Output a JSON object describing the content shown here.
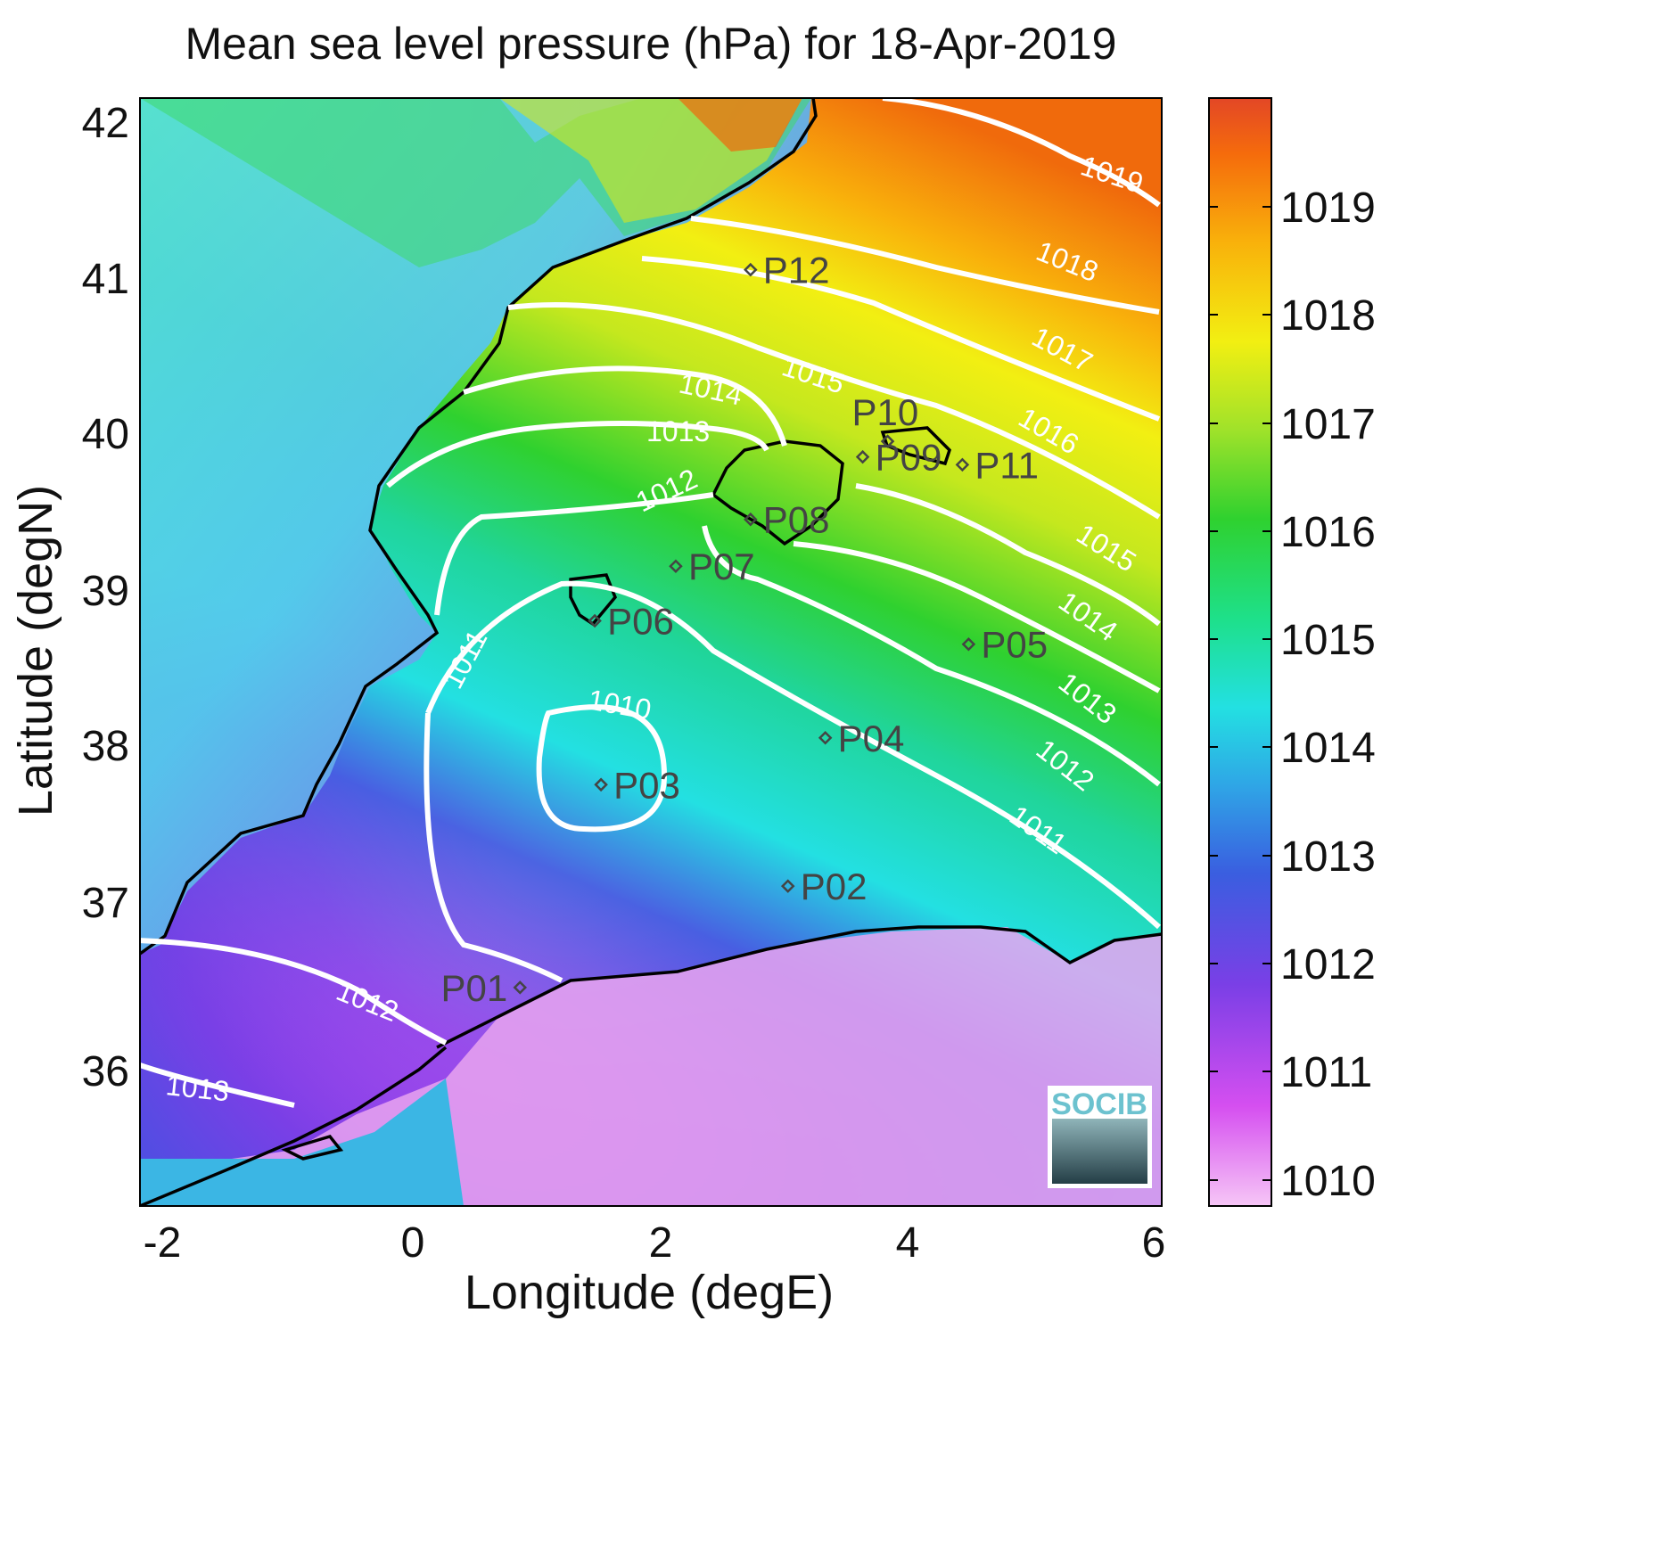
{
  "title": "Mean sea level pressure (hPa) for 18-Apr-2019",
  "xlabel": "Longitude (degE)",
  "ylabel": "Latitude (degN)",
  "x_ticks": [
    "-2",
    "0",
    "2",
    "4",
    "6"
  ],
  "y_ticks": [
    "42",
    "41",
    "40",
    "39",
    "38",
    "37",
    "36"
  ],
  "colorbar": {
    "ticks": [
      "1019",
      "1018",
      "1017",
      "1016",
      "1015",
      "1014",
      "1013",
      "1012",
      "1011",
      "1010"
    ],
    "colors": [
      "#f4b8f4",
      "#d54ff0",
      "#7a3fe6",
      "#3b7bd9",
      "#23d3e6",
      "#20d59a",
      "#2fd12f",
      "#9fe22a",
      "#f2ef12",
      "#f9b10b",
      "#f56b0c",
      "#e34726"
    ]
  },
  "chart_data": {
    "type": "heatmap",
    "title": "Mean sea level pressure (hPa) for 18-Apr-2019",
    "xlabel": "Longitude (degE)",
    "ylabel": "Latitude (degN)",
    "xlim": [
      -2.2,
      6
    ],
    "ylim": [
      35.1,
      42.2
    ],
    "color_range": [
      1009.8,
      1019.9
    ],
    "pressure_minimum": {
      "lon": 1.4,
      "lat": 37.8,
      "value": 1010
    },
    "contour_levels": [
      1010,
      1011,
      1012,
      1013,
      1014,
      1015,
      1016,
      1017,
      1018,
      1019
    ],
    "stations": [
      {
        "name": "P01",
        "lon": 0.85,
        "lat": 36.5
      },
      {
        "name": "P02",
        "lon": 3.0,
        "lat": 37.15
      },
      {
        "name": "P03",
        "lon": 1.5,
        "lat": 37.8
      },
      {
        "name": "P04",
        "lon": 3.3,
        "lat": 38.1
      },
      {
        "name": "P05",
        "lon": 4.45,
        "lat": 38.7
      },
      {
        "name": "P06",
        "lon": 1.45,
        "lat": 38.85
      },
      {
        "name": "P07",
        "lon": 2.1,
        "lat": 39.2
      },
      {
        "name": "P08",
        "lon": 2.7,
        "lat": 39.5
      },
      {
        "name": "P09",
        "lon": 3.6,
        "lat": 39.9
      },
      {
        "name": "P10",
        "lon": 3.8,
        "lat": 40.0
      },
      {
        "name": "P11",
        "lon": 4.4,
        "lat": 39.85
      },
      {
        "name": "P12",
        "lon": 2.7,
        "lat": 41.1
      }
    ]
  },
  "logo": {
    "text": "SOCIB"
  }
}
